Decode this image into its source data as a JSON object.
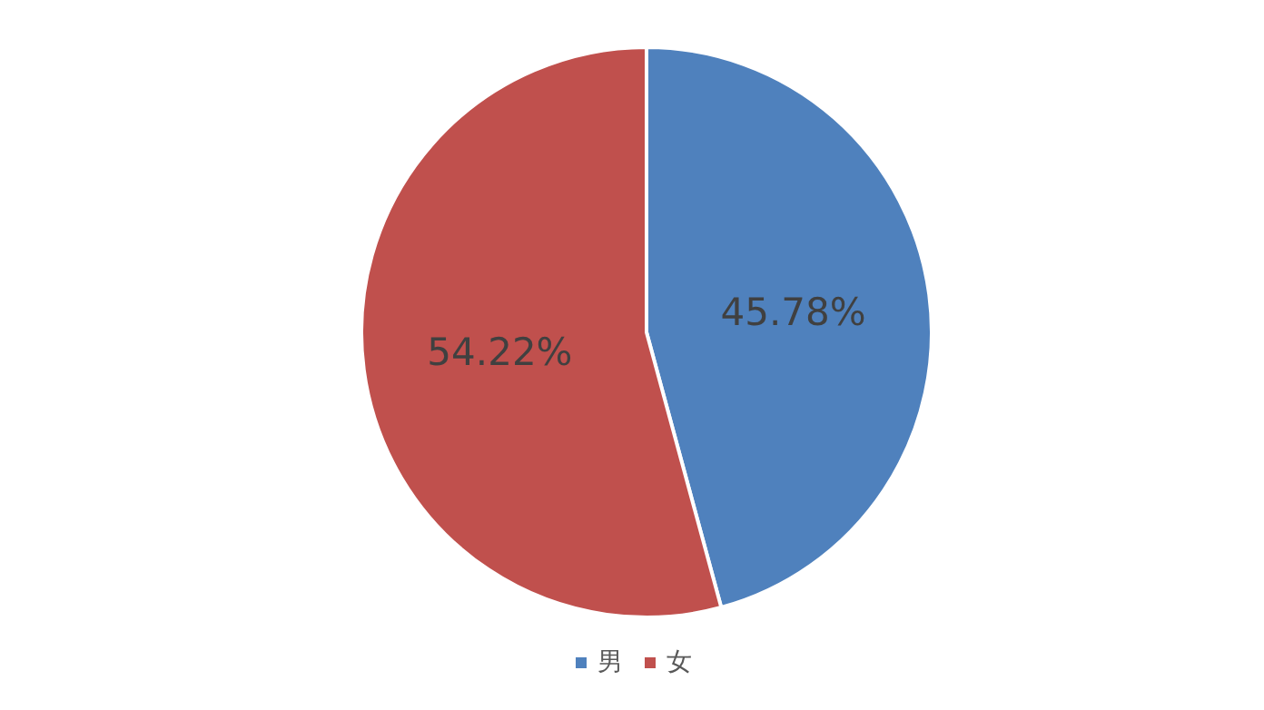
{
  "chart_data": {
    "type": "pie",
    "categories": [
      "男",
      "女"
    ],
    "values": [
      45.78,
      54.22
    ],
    "colors": [
      "#4f81bd",
      "#c0504d"
    ],
    "value_labels": [
      "45.78%",
      "54.22%"
    ],
    "legend": "bottom"
  }
}
